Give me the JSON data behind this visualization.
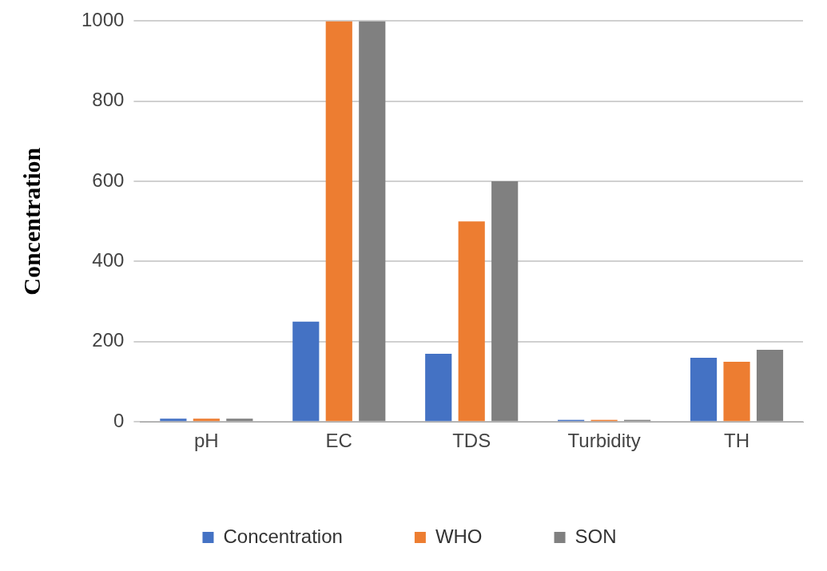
{
  "chart_data": {
    "type": "bar",
    "ylabel": "Concentration",
    "categories": [
      "pH",
      "EC",
      "TDS",
      "Turbidity",
      "TH"
    ],
    "series": [
      {
        "name": "Concentration",
        "color": "#4472c4",
        "values": [
          8,
          250,
          170,
          5,
          160
        ]
      },
      {
        "name": "WHO",
        "color": "#ed7d31",
        "values": [
          8,
          1000,
          500,
          5,
          150
        ]
      },
      {
        "name": "SON",
        "color": "#808080",
        "values": [
          8,
          1000,
          600,
          5,
          180
        ]
      }
    ],
    "ylim": [
      0,
      1000
    ],
    "yticks": [
      0,
      200,
      400,
      600,
      800,
      1000
    ],
    "grid": "y",
    "legend": "bottom"
  }
}
